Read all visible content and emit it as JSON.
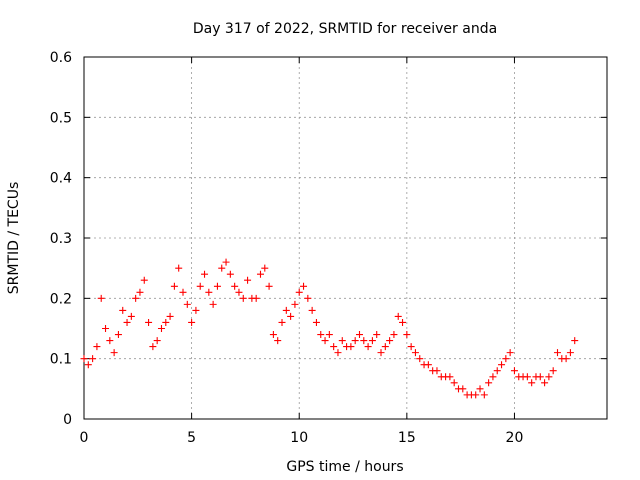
{
  "chart_data": {
    "type": "scatter",
    "title": "Day 317 of 2022, SRMTID for receiver anda",
    "xlabel": "GPS time / hours",
    "ylabel": "SRMTID / TECUs",
    "xlim": [
      0,
      24.3
    ],
    "ylim": [
      0,
      0.6
    ],
    "xticks": [
      0,
      5,
      10,
      15,
      20
    ],
    "yticks": [
      0,
      0.1,
      0.2,
      0.3,
      0.4,
      0.5,
      0.6
    ],
    "xtick_labels": [
      "0",
      "5",
      "10",
      "15",
      "20"
    ],
    "ytick_labels": [
      "0",
      "0.1",
      "0.2",
      "0.3",
      "0.4",
      "0.5",
      "0.6"
    ],
    "grid": true,
    "marker": "+",
    "series": [
      {
        "name": "SRMTID",
        "color": "#ff0000",
        "x": [
          0.0,
          0.2,
          0.4,
          0.6,
          0.8,
          1.0,
          1.2,
          1.4,
          1.6,
          1.8,
          2.0,
          2.2,
          2.4,
          2.6,
          2.8,
          3.0,
          3.2,
          3.4,
          3.6,
          3.8,
          4.0,
          4.2,
          4.4,
          4.6,
          4.8,
          5.0,
          5.2,
          5.4,
          5.6,
          5.8,
          6.0,
          6.2,
          6.4,
          6.6,
          6.8,
          7.0,
          7.2,
          7.4,
          7.6,
          7.8,
          8.0,
          8.2,
          8.4,
          8.6,
          8.8,
          9.0,
          9.2,
          9.4,
          9.6,
          9.8,
          10.0,
          10.2,
          10.4,
          10.6,
          10.8,
          11.0,
          11.2,
          11.4,
          11.6,
          11.8,
          12.0,
          12.2,
          12.4,
          12.6,
          12.8,
          13.0,
          13.2,
          13.4,
          13.6,
          13.8,
          14.0,
          14.2,
          14.4,
          14.6,
          14.8,
          15.0,
          15.2,
          15.4,
          15.6,
          15.8,
          16.0,
          16.2,
          16.4,
          16.6,
          16.8,
          17.0,
          17.2,
          17.4,
          17.6,
          17.8,
          18.0,
          18.2,
          18.4,
          18.6,
          18.8,
          19.0,
          19.2,
          19.4,
          19.6,
          19.8,
          20.0,
          20.2,
          20.4,
          20.6,
          20.8,
          21.0,
          21.2,
          21.4,
          21.6,
          21.8,
          22.0,
          22.2,
          22.4,
          22.6,
          22.8
        ],
        "y": [
          0.1,
          0.09,
          0.1,
          0.12,
          0.2,
          0.15,
          0.13,
          0.11,
          0.14,
          0.18,
          0.16,
          0.17,
          0.2,
          0.21,
          0.23,
          0.16,
          0.12,
          0.13,
          0.15,
          0.16,
          0.17,
          0.22,
          0.25,
          0.21,
          0.19,
          0.16,
          0.18,
          0.22,
          0.24,
          0.21,
          0.19,
          0.22,
          0.25,
          0.26,
          0.24,
          0.22,
          0.21,
          0.2,
          0.23,
          0.2,
          0.2,
          0.24,
          0.25,
          0.22,
          0.14,
          0.13,
          0.16,
          0.18,
          0.17,
          0.19,
          0.21,
          0.22,
          0.2,
          0.18,
          0.16,
          0.14,
          0.13,
          0.14,
          0.12,
          0.11,
          0.13,
          0.12,
          0.12,
          0.13,
          0.14,
          0.13,
          0.12,
          0.13,
          0.14,
          0.11,
          0.12,
          0.13,
          0.14,
          0.17,
          0.16,
          0.14,
          0.12,
          0.11,
          0.1,
          0.09,
          0.09,
          0.08,
          0.08,
          0.07,
          0.07,
          0.07,
          0.06,
          0.05,
          0.05,
          0.04,
          0.04,
          0.04,
          0.05,
          0.04,
          0.06,
          0.07,
          0.08,
          0.09,
          0.1,
          0.11,
          0.08,
          0.07,
          0.07,
          0.07,
          0.06,
          0.07,
          0.07,
          0.06,
          0.07,
          0.08,
          0.11,
          0.1,
          0.1,
          0.11,
          0.13
        ]
      }
    ]
  }
}
